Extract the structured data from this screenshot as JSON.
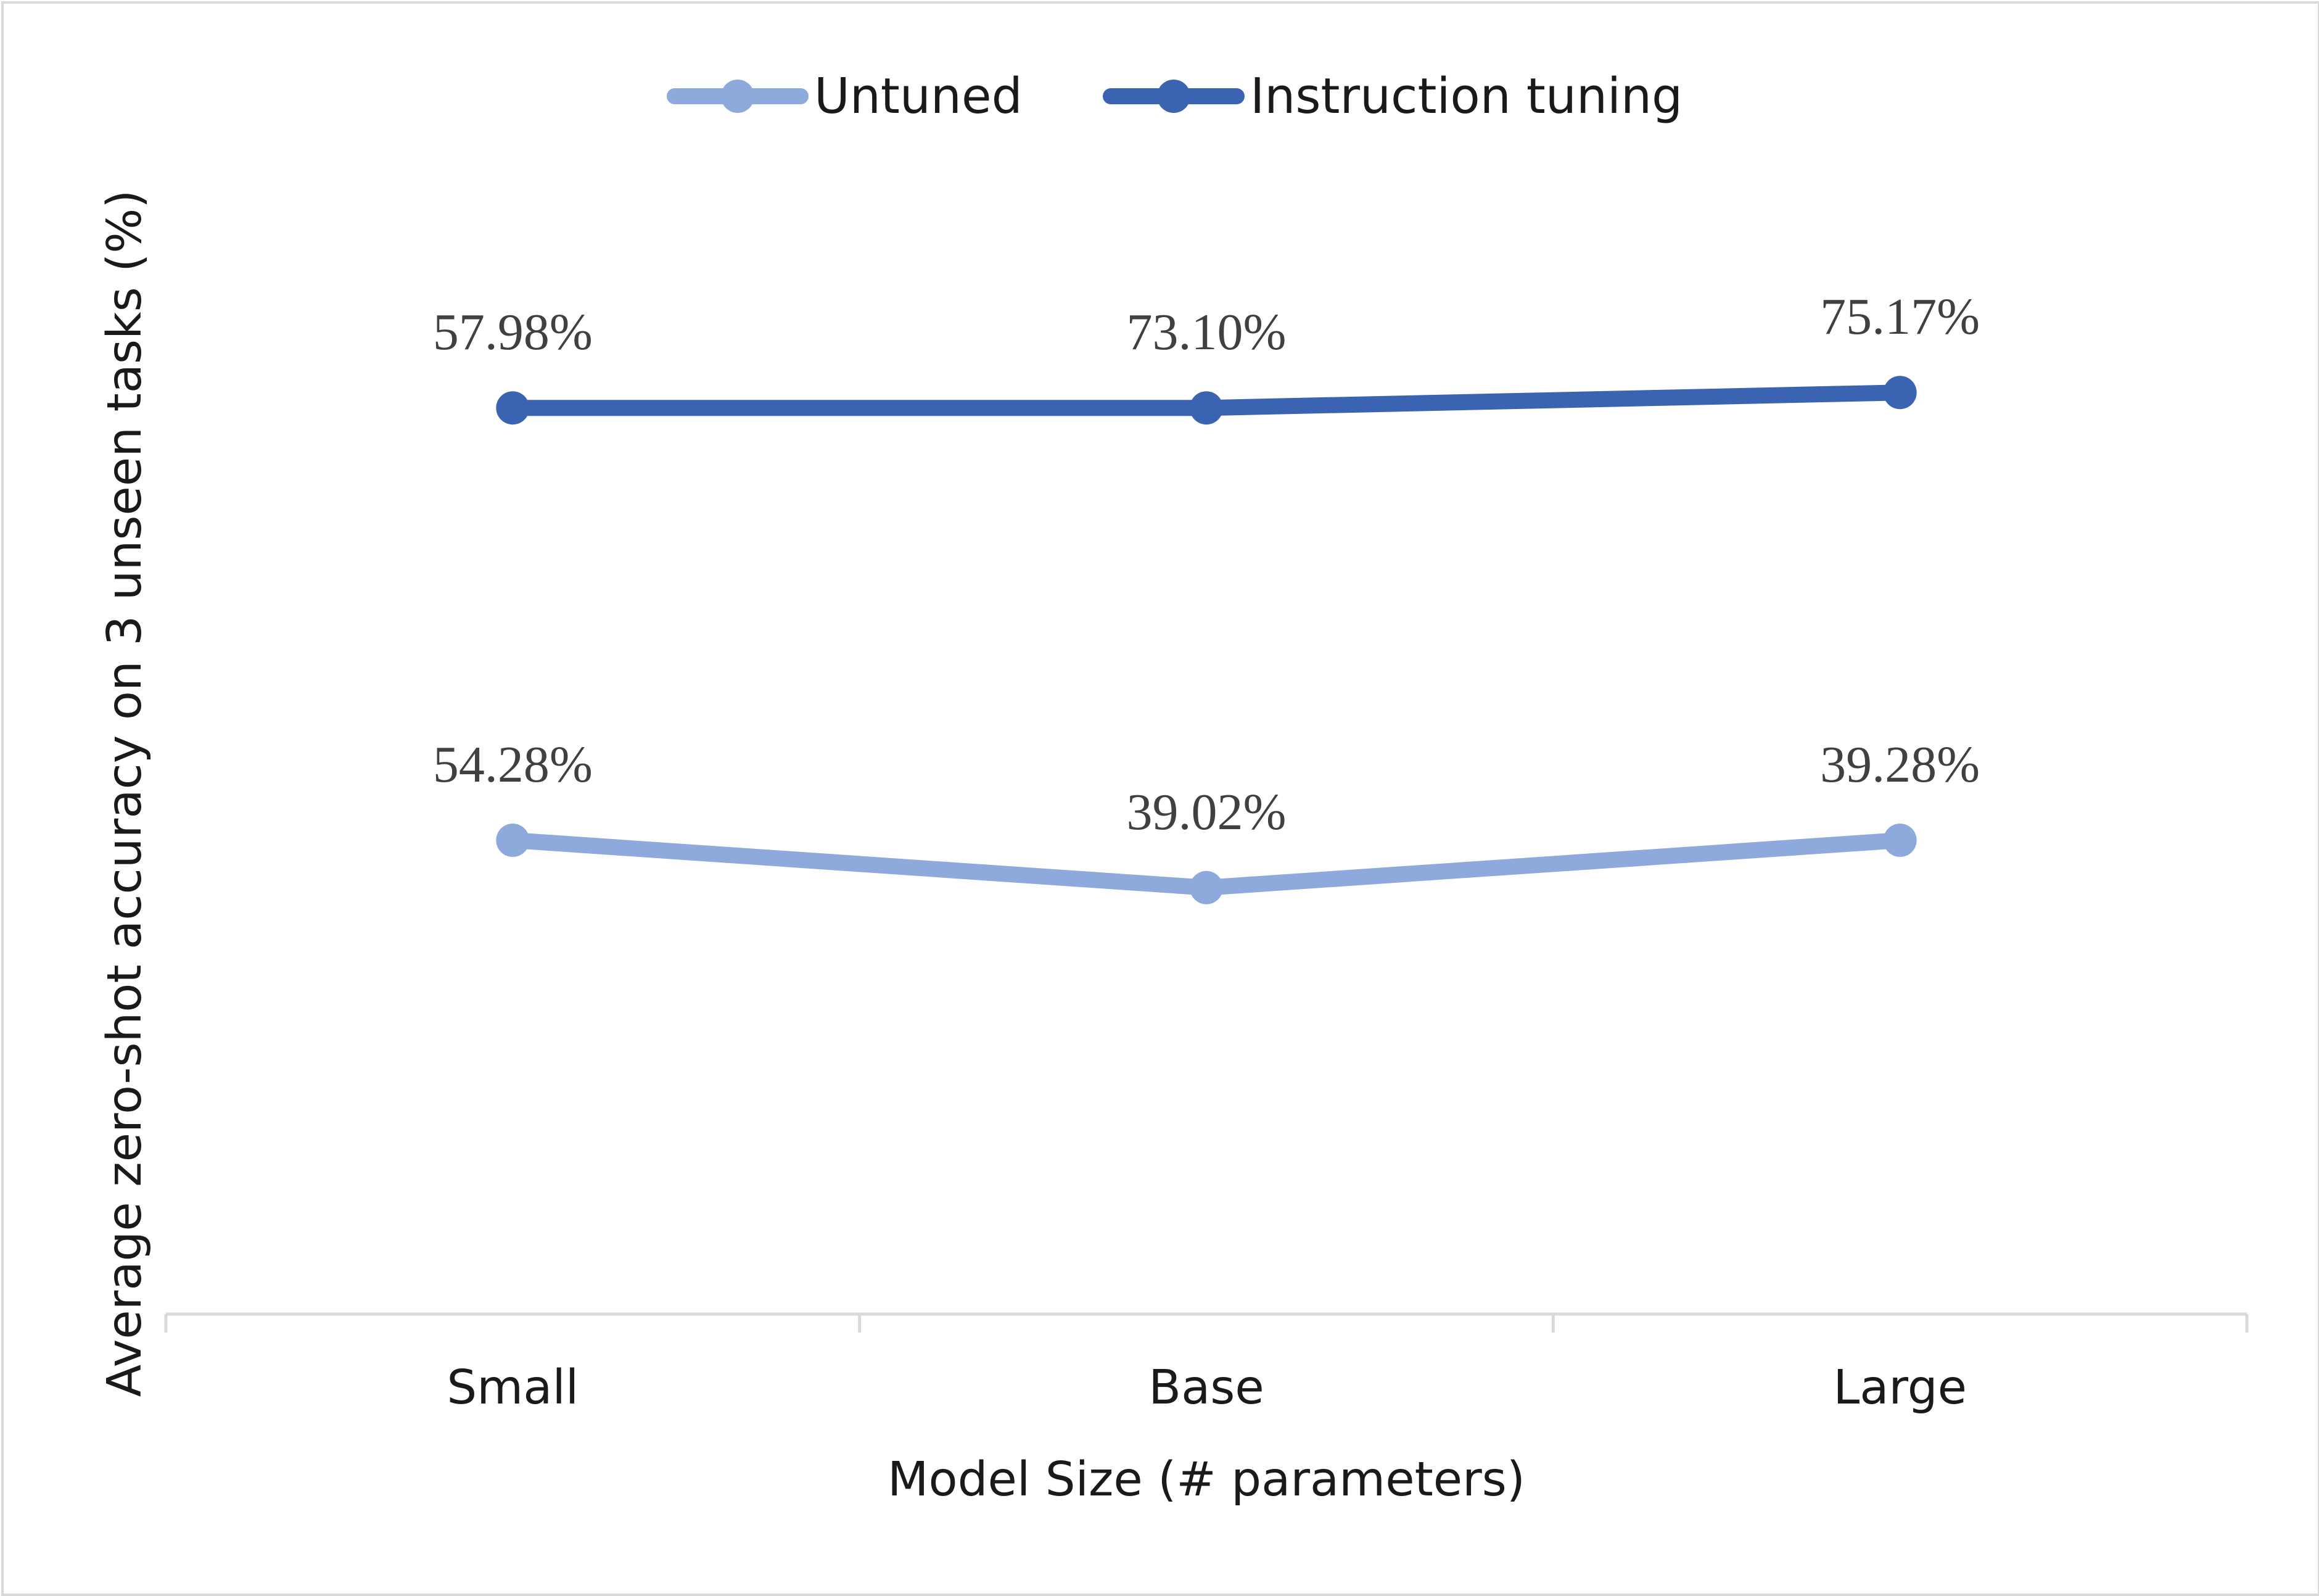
{
  "chart_data": {
    "type": "line",
    "categories": [
      "Small",
      "Base",
      "Large"
    ],
    "series": [
      {
        "name": "Untuned",
        "values": [
          54.28,
          39.02,
          39.28
        ],
        "labels": [
          "54.28%",
          "39.02%",
          "39.28%"
        ],
        "color": "#8EA9DB"
      },
      {
        "name": "Instruction tuning",
        "values": [
          57.98,
          73.1,
          75.17
        ],
        "labels": [
          "57.98%",
          "73.10%",
          "75.17%"
        ],
        "color": "#3A63B1"
      }
    ],
    "title": "",
    "xlabel": "Model Size (# parameters)",
    "ylabel": "Average zero-shot accuracy on 3 unseen tasks (%)",
    "legend_position": "top",
    "grid": false,
    "note": "Plotted marker heights do not follow the printed labels on a linear scale; each marker's vertical level below is read from the plot as a 0–100 share of the plot height.",
    "plot_level": [
      [
        40,
        36,
        40
      ],
      [
        76.5,
        76.5,
        77.8
      ]
    ]
  }
}
